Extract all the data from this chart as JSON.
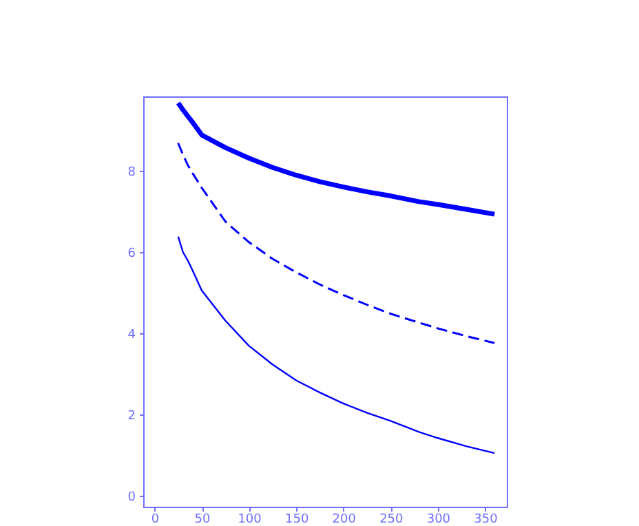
{
  "chart_data": {
    "type": "line",
    "x": [
      25,
      30,
      35,
      40,
      50,
      75,
      100,
      125,
      150,
      175,
      200,
      225,
      250,
      280,
      300,
      330,
      360
    ],
    "series": [
      {
        "color": "#0000ff",
        "line_style": "solid",
        "values": [
          9.67,
          9.5,
          9.35,
          9.2,
          8.88,
          8.57,
          8.31,
          8.08,
          7.89,
          7.73,
          7.6,
          7.48,
          7.38,
          7.24,
          7.17,
          7.05,
          6.93
        ]
      },
      {
        "color": "#0000ff",
        "line_style": "dashed",
        "values": [
          8.68,
          8.4,
          8.15,
          7.95,
          7.58,
          6.75,
          6.24,
          5.83,
          5.5,
          5.2,
          4.94,
          4.7,
          4.48,
          4.26,
          4.12,
          3.93,
          3.76
        ]
      },
      {
        "color": "#0000ff",
        "line_style": "solid",
        "values": [
          6.38,
          6.0,
          5.8,
          5.56,
          5.05,
          4.31,
          3.69,
          3.23,
          2.84,
          2.54,
          2.27,
          2.04,
          1.84,
          1.57,
          1.42,
          1.22,
          1.05
        ]
      }
    ],
    "xlim": [
      -12,
      373
    ],
    "ylim": [
      -0.27,
      9.83
    ],
    "xticks": [
      0,
      50,
      100,
      150,
      200,
      250,
      300,
      350
    ],
    "yticks": [
      0,
      2,
      4,
      6,
      8
    ],
    "grid": false,
    "legend": false,
    "marker": "none"
  }
}
